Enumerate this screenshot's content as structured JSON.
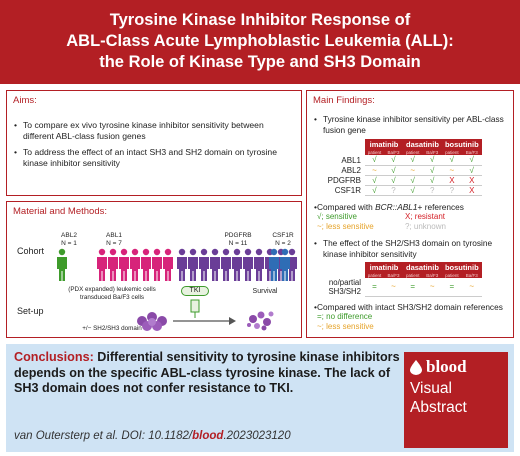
{
  "header": {
    "title_lines": [
      "Tyrosine Kinase Inhibitor Response of",
      "ABL-Class Acute Lymphoblastic Leukemia (ALL):",
      "the Role of Kinase Type and SH3 Domain"
    ]
  },
  "aims": {
    "title": "Aims:",
    "bullets": [
      "To compare ex vivo tyrosine kinase inhibitor sensitivity between different ABL-class fusion genes",
      "To address the effect of an intact SH3 and SH2 domain on tyrosine kinase inhibitor sensitivity"
    ]
  },
  "methods": {
    "title": "Material and Methods:",
    "cohort_label": "Cohort",
    "setup_label": "Set-up",
    "groups": [
      {
        "name": "ABL2",
        "n": "N = 1",
        "color": "#3e9b2b",
        "count": 1
      },
      {
        "name": "ABL1",
        "n": "N = 7",
        "color": "#d7237a",
        "count": 7
      },
      {
        "name": "PDGFRB",
        "n": "N = 11",
        "color": "#6a3d97",
        "count": 11
      },
      {
        "name": "CSF1R",
        "n": "N = 2",
        "color": "#2f6db5",
        "count": 2
      }
    ],
    "setup_cells": "(PDX expanded) leukemic cells transduced Ba/F3 cells",
    "setup_domain": "+/− SH2/SH3 domain",
    "tki_label": "TKI",
    "survival_label": "Survival"
  },
  "findings": {
    "title": "Main Findings:",
    "bullet1": "Tyrosine kinase inhibitor sensitivity per ABL-class fusion gene",
    "drugs": [
      "imatinib",
      "dasatinib",
      "bosutinib"
    ],
    "sub_headers": [
      "patient",
      "Ba/F3"
    ],
    "rows": [
      {
        "label": "ABL1",
        "cells": [
          "s",
          "s",
          "s",
          "s",
          "s",
          "s"
        ]
      },
      {
        "label": "ABL2",
        "cells": [
          "l",
          "s",
          "l",
          "s",
          "l",
          "s"
        ]
      },
      {
        "label": "PDGFRB",
        "cells": [
          "s",
          "s",
          "s",
          "s",
          "r",
          "r"
        ]
      },
      {
        "label": "CSF1R",
        "cells": [
          "s",
          "u",
          "s",
          "u",
          "u",
          "r"
        ]
      }
    ],
    "compared1_prefix": "Compared with ",
    "compared1_em": "BCR::ABL1",
    "compared1_suffix": "+ references",
    "legend1": [
      {
        "sym": "√",
        "text": "; sensitive",
        "cls": "s"
      },
      {
        "sym": "X",
        "text": "; resistant",
        "cls": "r"
      },
      {
        "sym": "~",
        "text": "; less sensitive",
        "cls": "l"
      },
      {
        "sym": "?",
        "text": "; unknown",
        "cls": "u"
      }
    ],
    "bullet2": "The effect of the SH2/SH3 domain on tyrosine kinase inhibitor sensitivity",
    "row2_label": [
      "no/partial",
      "SH3/SH2"
    ],
    "row2_cells": [
      "=",
      "~",
      "=",
      "~",
      "=",
      "~"
    ],
    "compared2": "Compared with intact SH3/SH2 domain references",
    "legend2": [
      {
        "sym": "=",
        "text": "; no difference"
      },
      {
        "sym": "~",
        "text": "; less sensitive"
      }
    ],
    "symbols": {
      "s": "√",
      "r": "X",
      "l": "~",
      "u": "?"
    }
  },
  "conclusion": {
    "label": "Conclusions:",
    "text": " Differential sensitivity to tyrosine kinase inhibitors depends on the specific ABL-class tyrosine kinase. The lack of SH3 domain does not confer resistance to TKI.",
    "citation_prefix": "van Outersterp et al. DOI: 10.1182/",
    "citation_bold": "blood",
    "citation_suffix": ".2023023120"
  },
  "badge": {
    "brand": "blood",
    "line2": "Visual",
    "line3": "Abstract"
  },
  "colors": {
    "brand_red": "#b31f24",
    "conclusion_bg": "#cfe3f4",
    "sensitive": "#3e9b2b",
    "resistant": "#d42027",
    "less": "#e6a32a",
    "unknown": "#bbbbbb"
  }
}
